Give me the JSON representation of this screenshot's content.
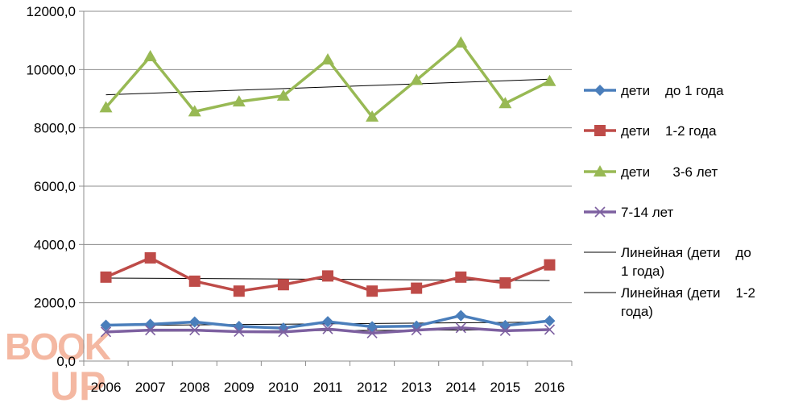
{
  "chart_data": {
    "type": "line",
    "categories": [
      "2006",
      "2007",
      "2008",
      "2009",
      "2010",
      "2011",
      "2012",
      "2013",
      "2014",
      "2015",
      "2016"
    ],
    "ylim": [
      0,
      12000
    ],
    "ytick_values": [
      0,
      2000,
      4000,
      6000,
      8000,
      10000,
      12000
    ],
    "ytick_labels": [
      "0,0",
      "2000,0",
      "4000,0",
      "6000,0",
      "8000,0",
      "10000,0",
      "12000,0"
    ],
    "grid": "horizontal",
    "legend_position": "right",
    "series": [
      {
        "name": "дети    до 1 года",
        "marker": "diamond",
        "color": "#4a7ebb",
        "values": [
          1230,
          1260,
          1340,
          1190,
          1130,
          1350,
          1180,
          1200,
          1560,
          1220,
          1380
        ]
      },
      {
        "name": "дети    1-2 года",
        "marker": "square",
        "color": "#be4b48",
        "values": [
          2880,
          3540,
          2740,
          2400,
          2620,
          2920,
          2400,
          2500,
          2880,
          2680,
          3300
        ]
      },
      {
        "name": "дети      3-6 лет",
        "marker": "triangle",
        "color": "#98b954",
        "values": [
          8700,
          10450,
          8560,
          8900,
          9100,
          10340,
          8380,
          9640,
          10920,
          8840,
          9600
        ]
      },
      {
        "name": "7-14 лет",
        "marker": "x",
        "color": "#7d60a0",
        "values": [
          1000,
          1060,
          1060,
          1010,
          1000,
          1100,
          960,
          1060,
          1140,
          1040,
          1080
        ]
      }
    ],
    "trendlines": [
      {
        "name": "Линейная (дети    до 1 года)",
        "series_index": 0,
        "color": "#000000"
      },
      {
        "name": "Линейная (дети    1-2 года)",
        "series_index": 1,
        "color": "#000000"
      },
      {
        "name": "",
        "series_index": 2,
        "color": "#000000"
      },
      {
        "name": "",
        "series_index": 3,
        "color": "#000000"
      }
    ],
    "legend_lines": [
      [
        "дети    до 1 года"
      ],
      [
        "дети    1-2 года"
      ],
      [
        "дети      3-6 лет"
      ],
      [
        "7-14 лет"
      ],
      [
        "Линейная (дети    до",
        "1 года)"
      ],
      [
        "Линейная (дети    1-2",
        "года)"
      ]
    ]
  },
  "watermark": {
    "text_top": "BOOK",
    "text_bottom": "UP",
    "color": "#f4b8a2"
  }
}
